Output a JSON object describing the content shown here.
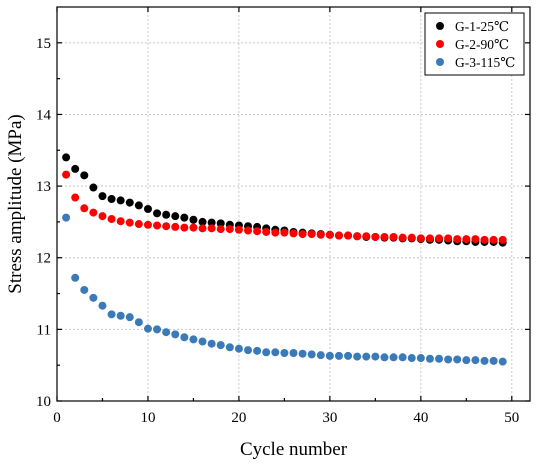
{
  "chart_data": {
    "type": "scatter",
    "title": "",
    "xlabel": "Cycle number",
    "ylabel": "Stress amplitude (MPa)",
    "xlim": [
      0,
      52
    ],
    "ylim": [
      10,
      15.5
    ],
    "xticks": [
      0,
      10,
      20,
      30,
      40,
      50
    ],
    "yticks": [
      10,
      11,
      12,
      13,
      14,
      15
    ],
    "grid": true,
    "legend_position": "top-right",
    "series": [
      {
        "name": "G-1-25℃",
        "color": "#000000",
        "x": [
          1,
          2,
          3,
          4,
          5,
          6,
          7,
          8,
          9,
          10,
          11,
          12,
          13,
          14,
          15,
          16,
          17,
          18,
          19,
          20,
          21,
          22,
          23,
          24,
          25,
          26,
          27,
          28,
          29,
          30,
          31,
          32,
          33,
          34,
          35,
          36,
          37,
          38,
          39,
          40,
          41,
          42,
          43,
          44,
          45,
          46,
          47,
          48,
          49
        ],
        "y": [
          13.4,
          13.24,
          13.15,
          12.98,
          12.86,
          12.82,
          12.8,
          12.77,
          12.73,
          12.68,
          12.62,
          12.6,
          12.58,
          12.56,
          12.53,
          12.5,
          12.49,
          12.48,
          12.46,
          12.45,
          12.44,
          12.43,
          12.41,
          12.39,
          12.38,
          12.36,
          12.35,
          12.34,
          12.33,
          12.32,
          12.31,
          12.31,
          12.3,
          12.29,
          12.29,
          12.28,
          12.28,
          12.27,
          12.27,
          12.26,
          12.25,
          12.25,
          12.24,
          12.23,
          12.23,
          12.22,
          12.22,
          12.22,
          12.21
        ]
      },
      {
        "name": "G-2-90℃",
        "color": "#ff0000",
        "x": [
          1,
          2,
          3,
          4,
          5,
          6,
          7,
          8,
          9,
          10,
          11,
          12,
          13,
          14,
          15,
          16,
          17,
          18,
          19,
          20,
          21,
          22,
          23,
          24,
          25,
          26,
          27,
          28,
          29,
          30,
          31,
          32,
          33,
          34,
          35,
          36,
          37,
          38,
          39,
          40,
          41,
          42,
          43,
          44,
          45,
          46,
          47,
          48,
          49
        ],
        "y": [
          13.16,
          12.84,
          12.69,
          12.63,
          12.58,
          12.54,
          12.51,
          12.49,
          12.47,
          12.46,
          12.45,
          12.44,
          12.43,
          12.42,
          12.42,
          12.41,
          12.41,
          12.4,
          12.4,
          12.39,
          12.38,
          12.37,
          12.36,
          12.35,
          12.35,
          12.34,
          12.33,
          12.33,
          12.32,
          12.32,
          12.31,
          12.31,
          12.3,
          12.3,
          12.29,
          12.29,
          12.29,
          12.28,
          12.28,
          12.27,
          12.27,
          12.27,
          12.27,
          12.26,
          12.26,
          12.26,
          12.25,
          12.25,
          12.25
        ]
      },
      {
        "name": "G-3-115℃",
        "color": "#3a7ab8",
        "x": [
          1,
          2,
          3,
          4,
          5,
          6,
          7,
          8,
          9,
          10,
          11,
          12,
          13,
          14,
          15,
          16,
          17,
          18,
          19,
          20,
          21,
          22,
          23,
          24,
          25,
          26,
          27,
          28,
          29,
          30,
          31,
          32,
          33,
          34,
          35,
          36,
          37,
          38,
          39,
          40,
          41,
          42,
          43,
          44,
          45,
          46,
          47,
          48,
          49
        ],
        "y": [
          12.56,
          11.72,
          11.55,
          11.44,
          11.33,
          11.21,
          11.19,
          11.17,
          11.1,
          11.01,
          11.0,
          10.96,
          10.93,
          10.89,
          10.86,
          10.83,
          10.8,
          10.78,
          10.75,
          10.73,
          10.71,
          10.7,
          10.68,
          10.68,
          10.67,
          10.67,
          10.66,
          10.65,
          10.64,
          10.63,
          10.63,
          10.63,
          10.62,
          10.62,
          10.62,
          10.61,
          10.61,
          10.61,
          10.6,
          10.6,
          10.59,
          10.59,
          10.58,
          10.58,
          10.57,
          10.57,
          10.56,
          10.56,
          10.55
        ]
      }
    ]
  }
}
